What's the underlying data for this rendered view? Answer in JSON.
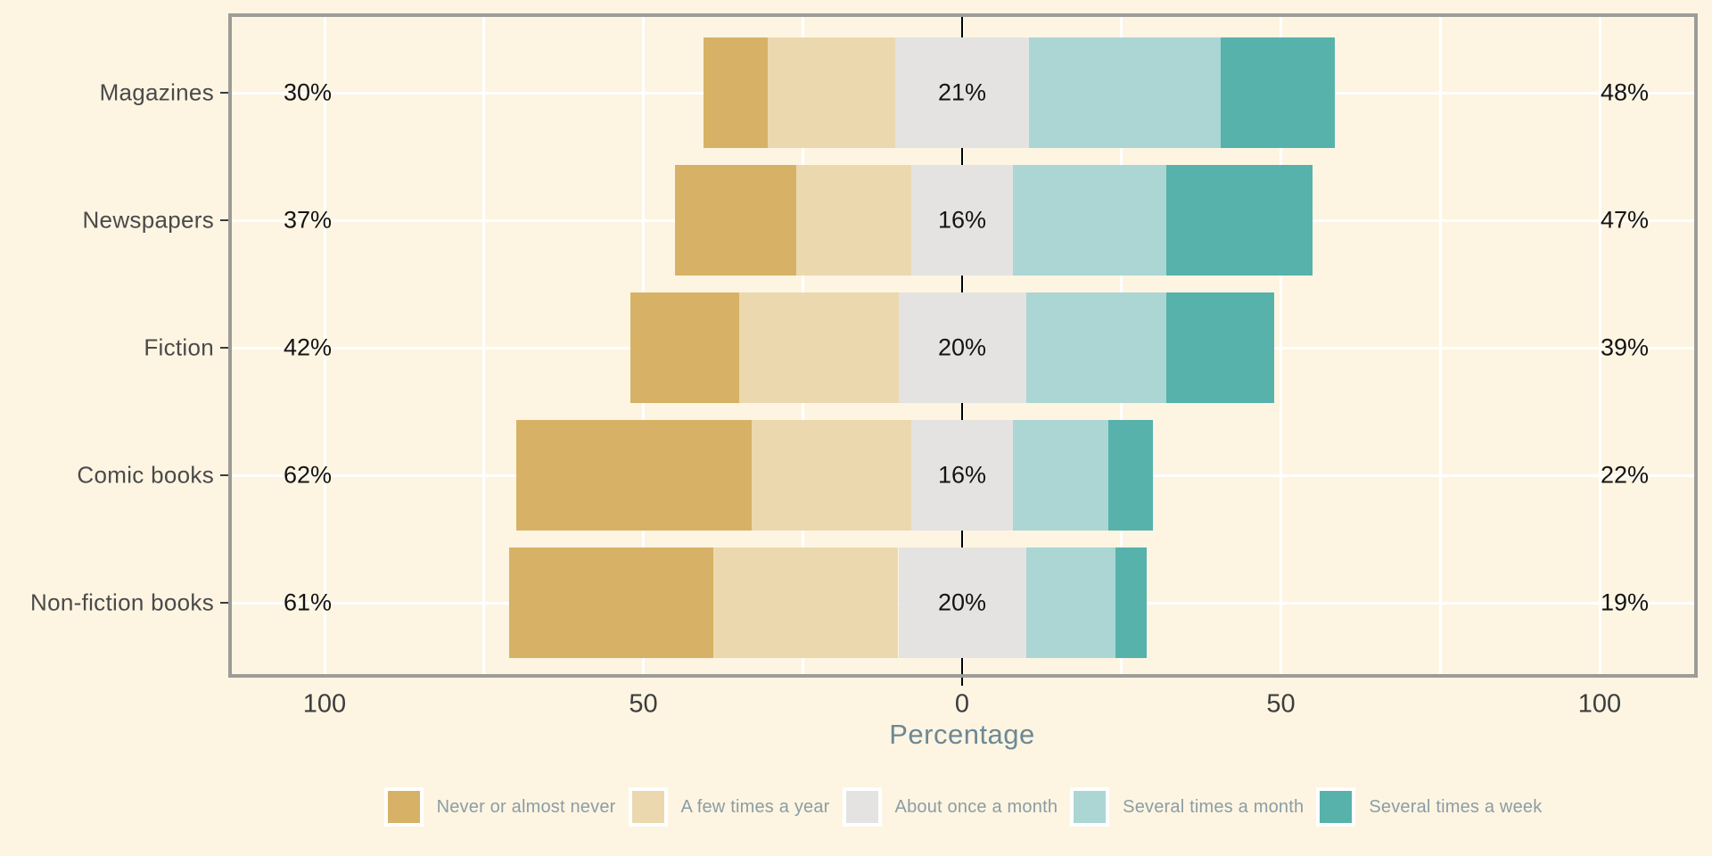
{
  "chart_data": {
    "type": "bar",
    "variant": "diverging-stacked-likert",
    "title": "",
    "xlabel": "Percentage",
    "categories": [
      "Magazines",
      "Newspapers",
      "Fiction",
      "Comic books",
      "Non-fiction books"
    ],
    "series": [
      {
        "name": "Never or almost never",
        "color": "#d7b266",
        "values": [
          10,
          19,
          17,
          37,
          32
        ]
      },
      {
        "name": "A few times a year",
        "color": "#ebd8af",
        "values": [
          20,
          18,
          25,
          25,
          29
        ]
      },
      {
        "name": "About once a month",
        "color": "#e4e3e2",
        "values": [
          21,
          16,
          20,
          16,
          20
        ]
      },
      {
        "name": "Several times a month",
        "color": "#abd6d3",
        "values": [
          30,
          24,
          22,
          15,
          14
        ]
      },
      {
        "name": "Several times a week",
        "color": "#57b2ab",
        "values": [
          18,
          23,
          17,
          7,
          5
        ]
      }
    ],
    "bar_labels": {
      "left": [
        "30%",
        "37%",
        "42%",
        "62%",
        "61%"
      ],
      "center": [
        "21%",
        "16%",
        "20%",
        "16%",
        "20%"
      ],
      "right": [
        "48%",
        "47%",
        "39%",
        "22%",
        "19%"
      ]
    },
    "x_tick_labels": [
      "100",
      "50",
      "0",
      "50",
      "100"
    ],
    "x_tick_values": [
      -100,
      -50,
      0,
      50,
      100
    ],
    "x_grid_values": [
      -100,
      -75,
      -50,
      -25,
      0,
      25,
      50,
      75,
      100
    ],
    "xlim": [
      -115,
      115
    ],
    "layout": {
      "orientation": "horizontal",
      "center_series_straddles_zero": "About once a month",
      "left_label_equals": "Never or almost never + A few times a year",
      "right_label_equals": "Several times a month + Several times a week",
      "legend_position": "bottom",
      "grid": "white major/minor vertical every 25, white horizontal at each category"
    },
    "colors": {
      "background": "#fdf5e2",
      "panel_border": "#9d9c98",
      "grid": "#ffffff",
      "zero_line": "#000000",
      "category_text": "#4a4a4a",
      "value_text": "#131313",
      "tick_text": "#3d3d3d",
      "axis_title_text": "#6d8894",
      "legend_text": "#8c9da3"
    }
  },
  "legend": {
    "position": "bottom",
    "items": [
      "Never or almost never",
      "A few times a year",
      "About once a month",
      "Several times a month",
      "Several times a week"
    ]
  }
}
